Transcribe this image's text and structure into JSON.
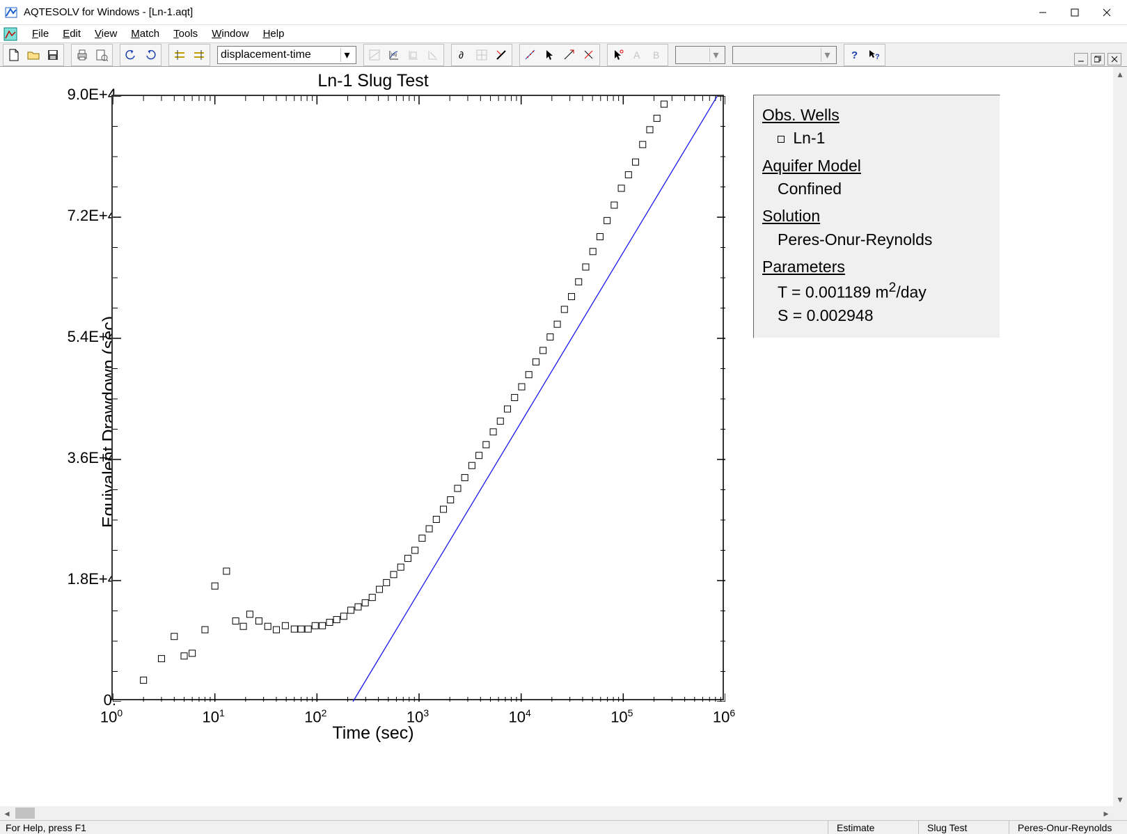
{
  "window": {
    "title": "AQTESOLV for Windows - [Ln-1.aqt]"
  },
  "menu": {
    "items": [
      {
        "label": "File",
        "key": "F"
      },
      {
        "label": "Edit",
        "key": "E"
      },
      {
        "label": "View",
        "key": "V"
      },
      {
        "label": "Match",
        "key": "M"
      },
      {
        "label": "Tools",
        "key": "T"
      },
      {
        "label": "Window",
        "key": "W"
      },
      {
        "label": "Help",
        "key": "H"
      }
    ]
  },
  "toolbar": {
    "dropdown_value": "displacement-time",
    "empty_dropdown_1": "",
    "empty_dropdown_2": ""
  },
  "chart": {
    "title": "Ln-1 Slug Test",
    "x_label": "Time (sec)",
    "y_label": "Equivalent Drawdown (sec)",
    "x_scale": "log",
    "y_scale": "linear",
    "x_min_exp": 0,
    "x_max_exp": 6,
    "y_min": 0,
    "y_max": 90000,
    "y_ticks": [
      {
        "v": 0,
        "label": "0."
      },
      {
        "v": 18000,
        "label": "1.8E+4"
      },
      {
        "v": 36000,
        "label": "3.6E+4"
      },
      {
        "v": 54000,
        "label": "5.4E+4"
      },
      {
        "v": 72000,
        "label": "7.2E+4"
      },
      {
        "v": 90000,
        "label": "9.0E+4"
      }
    ],
    "x_tick_exps": [
      0,
      1,
      2,
      3,
      4,
      5,
      6
    ],
    "marker": {
      "type": "square",
      "size": 9,
      "fill": "none",
      "stroke": "#000000"
    },
    "line_color": "#1818ee",
    "data_points": [
      [
        2.0,
        3200
      ],
      [
        3.0,
        6400
      ],
      [
        4.0,
        9700
      ],
      [
        5.0,
        6800
      ],
      [
        6.0,
        7200
      ],
      [
        8.0,
        10700
      ],
      [
        10.0,
        17200
      ],
      [
        13.0,
        19400
      ],
      [
        16.0,
        12000
      ],
      [
        19.0,
        11200
      ],
      [
        22.0,
        13000
      ],
      [
        27.0,
        12000
      ],
      [
        33.0,
        11200
      ],
      [
        40.0,
        10700
      ],
      [
        49.0,
        11300
      ],
      [
        60.0,
        10800
      ],
      [
        70.0,
        10800
      ],
      [
        82.0,
        10800
      ],
      [
        96.0,
        11300
      ],
      [
        113.0,
        11300
      ],
      [
        133.0,
        11800
      ],
      [
        156.0,
        12200
      ],
      [
        183.0,
        12700
      ],
      [
        215.0,
        13600
      ],
      [
        253.0,
        14100
      ],
      [
        297.0,
        14700
      ],
      [
        348.0,
        15500
      ],
      [
        409.0,
        16700
      ],
      [
        480.0,
        17700
      ],
      [
        564.0,
        18900
      ],
      [
        662.0,
        20000
      ],
      [
        777.0,
        21300
      ],
      [
        912.0,
        22500
      ],
      [
        1071.0,
        24300
      ],
      [
        1257.0,
        25700
      ],
      [
        1476.0,
        27100
      ],
      [
        1733.0,
        28600
      ],
      [
        2034.0,
        30000
      ],
      [
        2388.0,
        31700
      ],
      [
        2804.0,
        33300
      ],
      [
        3292.0,
        35100
      ],
      [
        3865.0,
        36600
      ],
      [
        4538.0,
        38200
      ],
      [
        5328.0,
        40100
      ],
      [
        6255.0,
        41700
      ],
      [
        7344.0,
        43500
      ],
      [
        8623.0,
        45200
      ],
      [
        10124.0,
        46800
      ],
      [
        11887.0,
        48600
      ],
      [
        13957.0,
        50500
      ],
      [
        16387.0,
        52200
      ],
      [
        19240.0,
        54200
      ],
      [
        22590.0,
        56100
      ],
      [
        26523.0,
        58300
      ],
      [
        31140.0,
        60200
      ],
      [
        36562.0,
        62400
      ],
      [
        42928.0,
        64600
      ],
      [
        50402.0,
        66900
      ],
      [
        59178.0,
        69100
      ],
      [
        69481.0,
        71500
      ],
      [
        81578.0,
        73800
      ],
      [
        95782.0,
        76300
      ],
      [
        112458.0,
        78300
      ],
      [
        132038.0,
        80200
      ],
      [
        155026.0,
        82800
      ],
      [
        182018.0,
        85000
      ],
      [
        213708.0,
        86700
      ],
      [
        250917.0,
        88800
      ]
    ],
    "fit_line": {
      "x1": 225,
      "y1": 0,
      "x2": 1000000,
      "y2": 92000
    }
  },
  "legend": {
    "obs_wells_header": "Obs. Wells",
    "obs_well_name": "Ln-1",
    "aquifer_model_header": "Aquifer Model",
    "aquifer_model_value": "Confined",
    "solution_header": "Solution",
    "solution_value": "Peres-Onur-Reynolds",
    "parameters_header": "Parameters",
    "param_T_label": "T",
    "param_T_value": "0.001189",
    "param_T_units_pre": "m",
    "param_T_units_exp": "2",
    "param_T_units_post": "/day",
    "param_S_label": "S",
    "param_S_value": "0.002948"
  },
  "status": {
    "left": "For Help, press F1",
    "cells": [
      "Estimate",
      "Slug Test",
      "Peres-Onur-Reynolds"
    ]
  },
  "colors": {
    "background": "#ffffff",
    "toolbar_bg": "#f0f0f0",
    "border": "#666666",
    "fit_line": "#1818ee"
  }
}
